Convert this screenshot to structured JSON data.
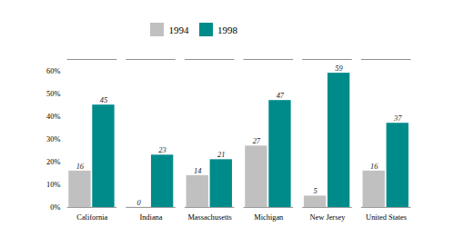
{
  "chart_data": {
    "type": "bar",
    "categories": [
      "California",
      "Indiana",
      "Massachusetts",
      "Michigan",
      "New Jersey",
      "United States"
    ],
    "series": [
      {
        "name": "1994",
        "color": "#c0c0c0",
        "values": [
          16,
          0,
          14,
          27,
          5,
          16
        ]
      },
      {
        "name": "1998",
        "color": "#008b8b",
        "values": [
          45,
          23,
          21,
          47,
          59,
          37
        ]
      }
    ],
    "ylim": [
      0,
      65
    ],
    "yticks": [
      {
        "value": 0,
        "label": "0%"
      },
      {
        "value": 10,
        "label": "10%"
      },
      {
        "value": 20,
        "label": "20%"
      },
      {
        "value": 30,
        "label": "30%"
      },
      {
        "value": 40,
        "label": "40%"
      },
      {
        "value": 50,
        "label": "50%"
      },
      {
        "value": 60,
        "label": "60%"
      }
    ],
    "data_labels": true,
    "legend": "upper center",
    "grid": false
  }
}
